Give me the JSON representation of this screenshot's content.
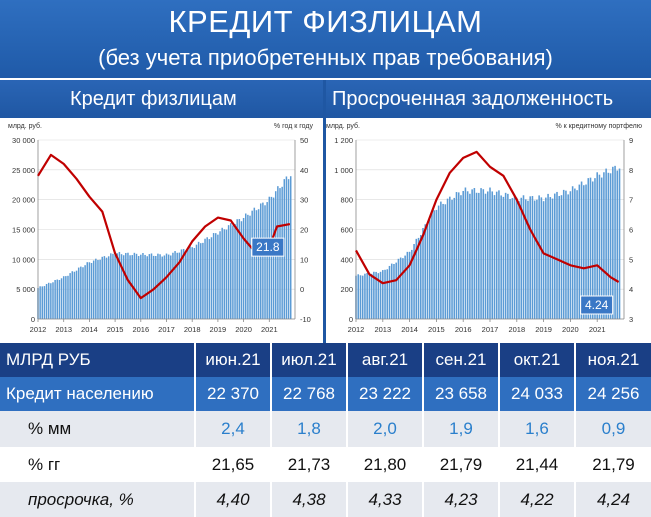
{
  "header": {
    "title": "КРЕДИТ ФИЗЛИЦАМ",
    "subtitle": "(без учета приобретенных прав требования)"
  },
  "colors": {
    "bar": "#5b9bd5",
    "line": "#c00000",
    "banner": "#2f6fc0",
    "table_header": "#1a3f85"
  },
  "chart_data": [
    {
      "type": "bar",
      "title": "Кредит физлицам",
      "ylabel": "млрд. руб.",
      "y2label": "% год к году",
      "ylim": [
        0,
        30000
      ],
      "y2lim": [
        -10,
        50
      ],
      "yticks": [
        "0",
        "5 000",
        "10 000",
        "15 000",
        "20 000",
        "25 000",
        "30 000"
      ],
      "y2ticks": [
        "-10",
        "0",
        "10",
        "20",
        "30",
        "40",
        "50"
      ],
      "xticks": [
        "2012",
        "2013",
        "2014",
        "2015",
        "2016",
        "2017",
        "2018",
        "2019",
        "2020",
        "2021"
      ],
      "last_value_label": "21.8",
      "series": [
        {
          "kind": "bar",
          "x": [
            2012.0,
            2013.0,
            2014.0,
            2015.0,
            2016.0,
            2017.0,
            2018.0,
            2019.0,
            2020.0,
            2021.0,
            2021.8
          ],
          "values": [
            5200,
            7000,
            9500,
            11000,
            10800,
            10700,
            12000,
            14500,
            17000,
            20000,
            24200
          ]
        },
        {
          "kind": "line",
          "x": [
            2012.0,
            2012.5,
            2013.0,
            2013.5,
            2014.0,
            2014.5,
            2015.0,
            2015.5,
            2016.0,
            2016.5,
            2017.0,
            2017.5,
            2018.0,
            2018.5,
            2019.0,
            2019.5,
            2020.0,
            2020.5,
            2021.0,
            2021.3,
            2021.8
          ],
          "values": [
            38,
            45,
            42,
            37,
            31,
            26,
            12,
            3,
            -3,
            0,
            4,
            9,
            16,
            21,
            24,
            23,
            17,
            12,
            14,
            21,
            21.8
          ]
        }
      ]
    },
    {
      "type": "bar",
      "title": "Просроченная задолженность",
      "ylabel": "млрд. руб.",
      "y2label": "% к кредитному портфелю",
      "ylim": [
        0,
        1200
      ],
      "y2lim": [
        3,
        9
      ],
      "yticks": [
        "0",
        "200",
        "400",
        "600",
        "800",
        "1 000",
        "1 200"
      ],
      "y2ticks": [
        "3",
        "4",
        "5",
        "6",
        "7",
        "8",
        "9"
      ],
      "xticks": [
        "2012",
        "2013",
        "2014",
        "2015",
        "2016",
        "2017",
        "2018",
        "2019",
        "2020",
        "2021"
      ],
      "last_value_label": "4.24",
      "series": [
        {
          "kind": "bar",
          "x": [
            2012.0,
            2013.0,
            2014.0,
            2015.0,
            2016.0,
            2017.0,
            2018.0,
            2019.0,
            2020.0,
            2021.0,
            2021.8
          ],
          "values": [
            290,
            320,
            450,
            750,
            860,
            860,
            810,
            810,
            860,
            960,
            1020
          ]
        },
        {
          "kind": "line",
          "x": [
            2012.0,
            2012.5,
            2013.0,
            2013.5,
            2014.0,
            2014.5,
            2015.0,
            2015.5,
            2016.0,
            2016.5,
            2017.0,
            2017.5,
            2018.0,
            2018.5,
            2019.0,
            2019.5,
            2020.0,
            2020.5,
            2021.0,
            2021.5,
            2021.8
          ],
          "values": [
            5.3,
            4.5,
            4.2,
            4.3,
            4.8,
            5.8,
            7.0,
            7.9,
            8.4,
            8.6,
            8.1,
            7.8,
            7.0,
            6.0,
            5.2,
            5.0,
            4.8,
            4.7,
            4.8,
            4.4,
            4.24
          ]
        }
      ]
    }
  ],
  "table": {
    "headers": [
      "МЛРД РУБ",
      "июн.21",
      "июл.21",
      "авг.21",
      "сен.21",
      "окт.21",
      "ноя.21"
    ],
    "rows": [
      {
        "label": "Кредит населению",
        "values": [
          "22 370",
          "22 768",
          "23 222",
          "23 658",
          "24 033",
          "24 256"
        ]
      },
      {
        "label": "% мм",
        "values": [
          "2,4",
          "1,8",
          "2,0",
          "1,9",
          "1,6",
          "0,9"
        ]
      },
      {
        "label": "% гг",
        "values": [
          "21,65",
          "21,73",
          "21,80",
          "21,79",
          "21,44",
          "21,79"
        ]
      },
      {
        "label": "просрочка, %",
        "values": [
          "4,40",
          "4,38",
          "4,33",
          "4,23",
          "4,22",
          "4,24"
        ]
      }
    ]
  }
}
